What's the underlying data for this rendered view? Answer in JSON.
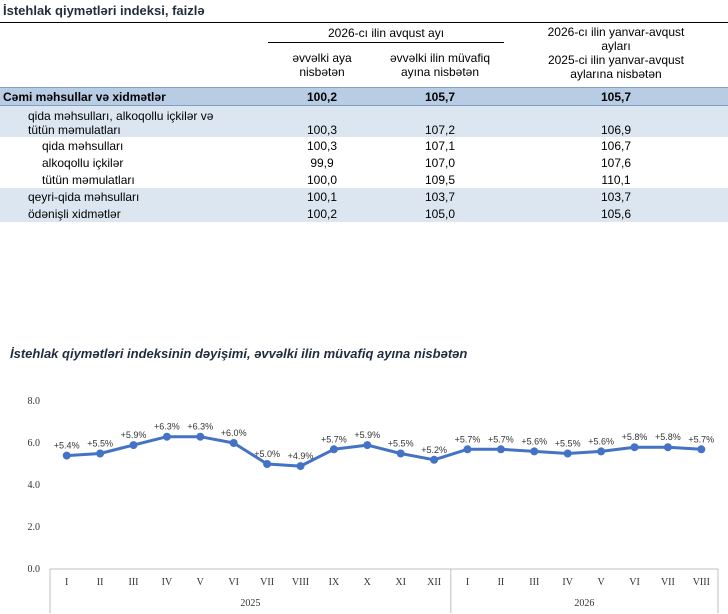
{
  "table": {
    "title": "İstehlak qiymətləri indeksi, faizlə",
    "header_group": "2026-cı ilin avqust ayı",
    "col1": [
      "əvvəlki aya",
      "nisbətən"
    ],
    "col2": [
      "əvvəlki ilin müvafiq",
      "ayına nisbətən"
    ],
    "col3": [
      "2026-cı ilin yanvar-avqust",
      "ayları",
      "2025-ci ilin yanvar-avqust",
      "aylarına nisbətən"
    ],
    "rows": [
      {
        "label": "Cəmi məhsullar və xidmətlər",
        "v1": "100,2",
        "v2": "105,7",
        "v3": "105,7"
      },
      {
        "label1": "qida məhsulları, alkoqollu içkilər və",
        "label2": "tütün məmulatları",
        "v1": "100,3",
        "v2": "107,2",
        "v3": "106,9"
      },
      {
        "label": "qida məhsulları",
        "v1": "100,3",
        "v2": "107,1",
        "v3": "106,7"
      },
      {
        "label": "alkoqollu içkilər",
        "v1": "99,9",
        "v2": "107,0",
        "v3": "107,6"
      },
      {
        "label": "tütün məmulatları",
        "v1": "100,0",
        "v2": "109,5",
        "v3": "110,1"
      },
      {
        "label": "qeyri-qida məhsulları",
        "v1": "100,1",
        "v2": "103,7",
        "v3": "103,7"
      },
      {
        "label": "ödənişli xidmətlər",
        "v1": "100,2",
        "v2": "105,0",
        "v3": "105,6"
      }
    ]
  },
  "chart_data": {
    "type": "line",
    "title": "İstehlak qiymətləri indeksinin dəyişimi, əvvəlki ilin müvafiq ayına nisbətən",
    "categories": [
      "I",
      "II",
      "III",
      "IV",
      "V",
      "VI",
      "VII",
      "VIII",
      "IX",
      "X",
      "XI",
      "XII",
      "I",
      "II",
      "III",
      "IV",
      "V",
      "VI",
      "VII",
      "VIII"
    ],
    "year_groups": [
      {
        "label": "2025",
        "count": 12
      },
      {
        "label": "2026",
        "count": 8
      }
    ],
    "values": [
      5.4,
      5.5,
      5.9,
      6.3,
      6.3,
      6.0,
      5.0,
      4.9,
      5.7,
      5.9,
      5.5,
      5.2,
      5.7,
      5.7,
      5.6,
      5.5,
      5.6,
      5.8,
      5.8,
      5.7
    ],
    "data_labels": [
      "+5.4%",
      "+5.5%",
      "+5.9%",
      "+6.3%",
      "+6.3%",
      "+6.0%",
      "+5.0%",
      "+4.9%",
      "+5.7%",
      "+5.9%",
      "+5.5%",
      "+5.2%",
      "+5.7%",
      "+5.7%",
      "+5.6%",
      "+5.5%",
      "+5.6%",
      "+5.8%",
      "+5.8%",
      "+5.7%"
    ],
    "yticks": [
      "0.0",
      "2.0",
      "4.0",
      "6.0",
      "8.0"
    ],
    "ylim": [
      0,
      8
    ],
    "line_color": "#4472c4",
    "grid": false
  }
}
